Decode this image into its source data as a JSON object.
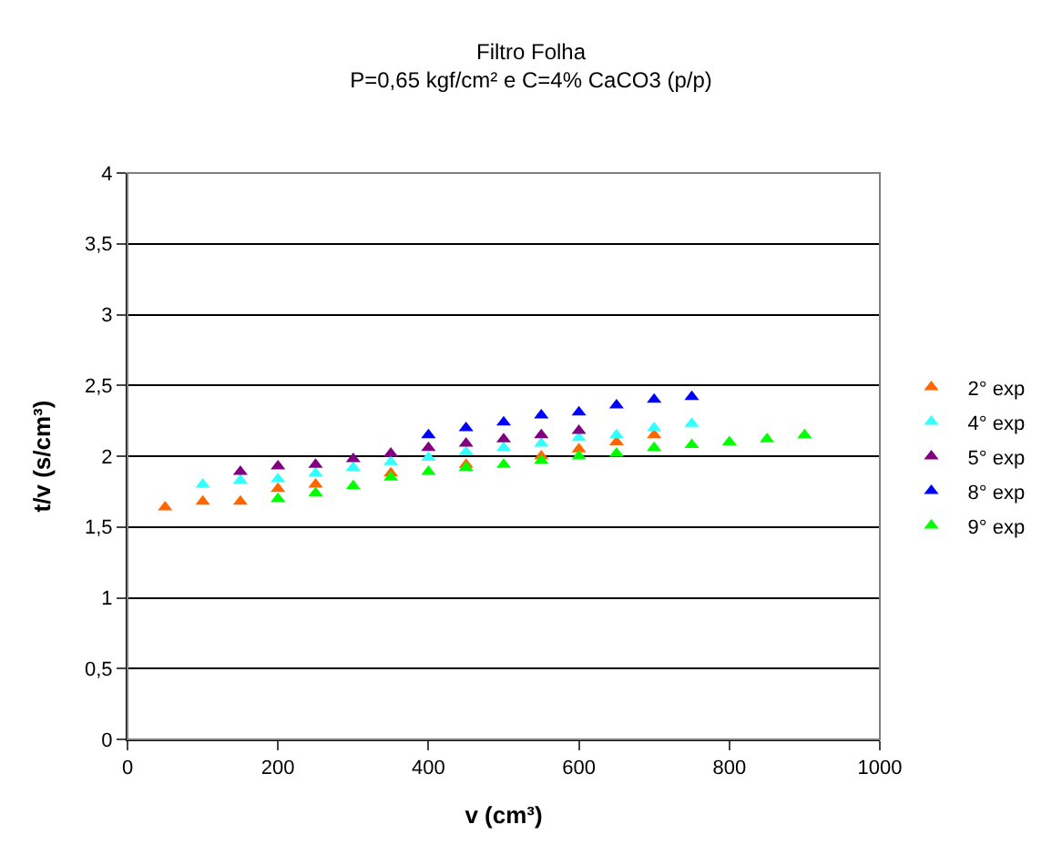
{
  "chart_data": {
    "type": "scatter",
    "title": "Filtro Folha",
    "subtitle": "P=0,65 kgf/cm² e C=4% CaCO3 (p/p)",
    "xlabel": "v (cm³)",
    "ylabel": "t/v (s/cm³)",
    "marker": "triangle",
    "legend": "right",
    "grid": "y",
    "xlim": [
      0,
      1000
    ],
    "xticks": [
      0,
      200,
      400,
      600,
      800,
      1000
    ],
    "ylim": [
      0,
      4
    ],
    "yticks": [
      0,
      {
        "value": 0.5,
        "label": "0,5"
      },
      1,
      {
        "value": 1.5,
        "label": "1,5"
      },
      2,
      {
        "value": 2.5,
        "label": "2,5"
      },
      3,
      {
        "value": 3.5,
        "label": "3,5"
      },
      4
    ],
    "series": [
      {
        "name": "2° exp",
        "color": "#ff6600",
        "x": [
          50,
          100,
          150,
          200,
          250,
          300,
          350,
          400,
          450,
          500,
          550,
          600,
          650,
          700
        ],
        "values": [
          1.64,
          1.68,
          1.68,
          1.77,
          1.8,
          null,
          1.88,
          null,
          1.94,
          null,
          2.0,
          2.05,
          2.1,
          2.15
        ]
      },
      {
        "name": "4° exp",
        "color": "#33ffff",
        "x": [
          100,
          150,
          200,
          250,
          300,
          350,
          400,
          450,
          500,
          550,
          600,
          650,
          700,
          750
        ],
        "values": [
          1.8,
          1.83,
          1.84,
          1.88,
          1.92,
          1.96,
          1.99,
          2.03,
          2.06,
          2.09,
          2.13,
          2.15,
          2.2,
          2.23
        ]
      },
      {
        "name": "5° exp",
        "color": "#800080",
        "x": [
          150,
          200,
          250,
          300,
          350,
          400,
          450,
          500,
          550,
          600
        ],
        "values": [
          1.89,
          1.93,
          1.94,
          1.98,
          2.02,
          2.06,
          2.09,
          2.12,
          2.15,
          2.18
        ]
      },
      {
        "name": "8° exp",
        "color": "#0000ff",
        "x": [
          400,
          450,
          500,
          550,
          600,
          650,
          700,
          750
        ],
        "values": [
          2.15,
          2.2,
          2.24,
          2.29,
          2.31,
          2.36,
          2.4,
          2.42
        ]
      },
      {
        "name": "9° exp",
        "color": "#00ff00",
        "x": [
          200,
          250,
          300,
          350,
          400,
          450,
          500,
          550,
          600,
          650,
          700,
          750,
          800,
          850,
          900
        ],
        "values": [
          1.7,
          1.74,
          1.79,
          1.85,
          1.89,
          1.92,
          1.94,
          1.97,
          2.0,
          2.02,
          2.06,
          2.08,
          2.1,
          2.12,
          2.15
        ]
      }
    ]
  }
}
